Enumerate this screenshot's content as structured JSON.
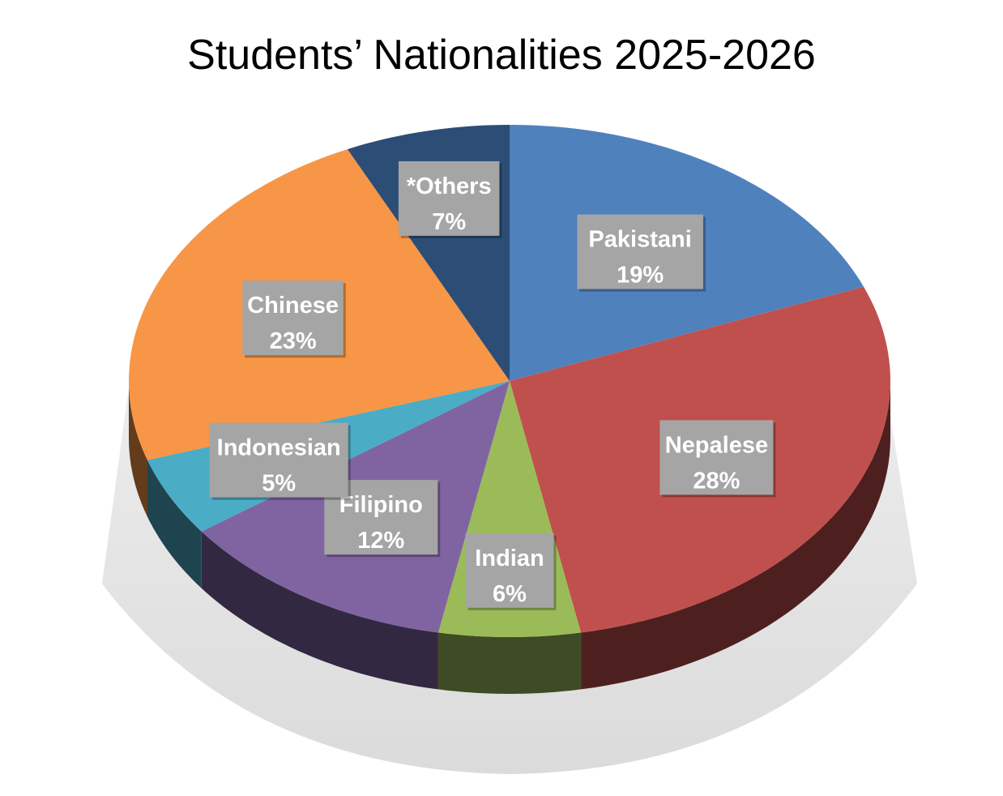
{
  "chart_data": {
    "type": "pie",
    "title": "Students’ Nationalities 2025-2026",
    "slices": [
      {
        "label": "Pakistani",
        "value": 19,
        "value_label": "19%",
        "color": "#4F81BD"
      },
      {
        "label": "Nepalese",
        "value": 28,
        "value_label": "28%",
        "color": "#C0504D"
      },
      {
        "label": "Indian",
        "value": 6,
        "value_label": "6%",
        "color": "#9BBB59"
      },
      {
        "label": "Filipino",
        "value": 12,
        "value_label": "12%",
        "color": "#8064A2"
      },
      {
        "label": "Indonesian",
        "value": 5,
        "value_label": "5%",
        "color": "#4BACC6"
      },
      {
        "label": "Chinese",
        "value": 23,
        "value_label": "23%",
        "color": "#F79646"
      },
      {
        "label": "*Others",
        "value": 7,
        "value_label": "7%",
        "color": "#2C4D75"
      }
    ],
    "label_box_color": "#A5A5A5"
  }
}
